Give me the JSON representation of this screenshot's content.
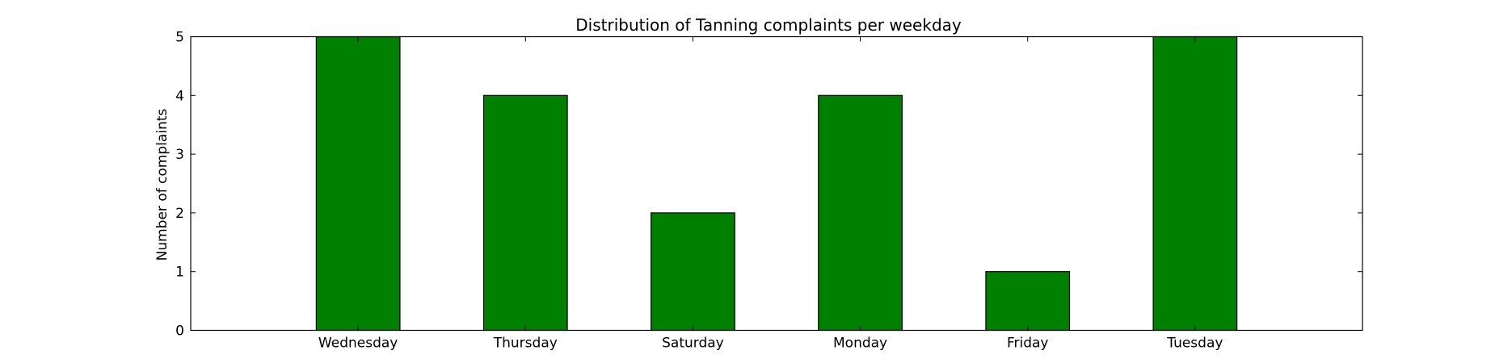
{
  "chart_data": {
    "type": "bar",
    "title": "Distribution of  Tanning complaints per weekday",
    "xlabel": "",
    "ylabel": "Number of complaints",
    "categories": [
      "Wednesday",
      "Thursday",
      "Saturday",
      "Monday",
      "Friday",
      "Tuesday"
    ],
    "values": [
      5,
      4,
      2,
      4,
      1,
      5
    ],
    "ylim": [
      0,
      5
    ],
    "yticks": [
      0,
      1,
      2,
      3,
      4,
      5
    ],
    "xlim": [
      -1,
      6
    ],
    "grid": false,
    "legend": "none",
    "bar_color": "#008000",
    "edge_color": "#000000"
  }
}
